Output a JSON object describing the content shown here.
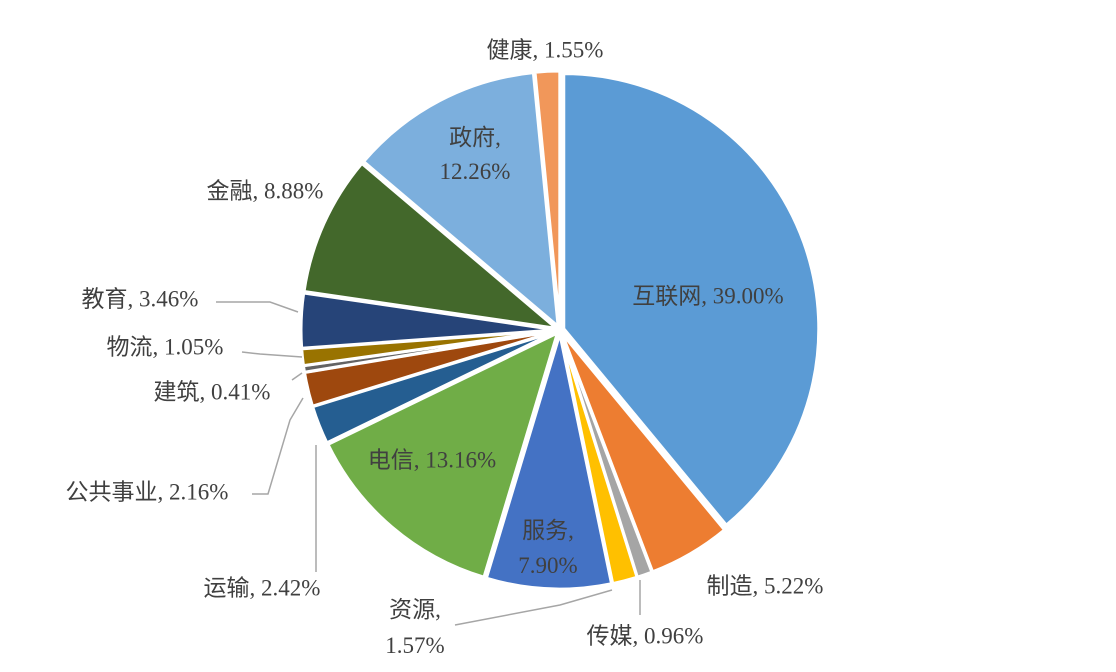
{
  "chart_data": {
    "type": "pie",
    "values": [
      39.0,
      5.22,
      0.96,
      1.57,
      7.9,
      13.16,
      2.42,
      2.16,
      0.41,
      1.05,
      3.46,
      8.88,
      12.26,
      1.55
    ],
    "value_labels": [
      "互联网, 39.00%",
      "制造, 5.22%",
      "传媒, 0.96%",
      "资源, 1.57%",
      "服务, 7.90%",
      "电信, 13.16%",
      "运输, 2.42%",
      "公共事业, 2.16%",
      "建筑, 0.41%",
      "物流, 1.05%",
      "教育, 3.46%",
      "金融, 8.88%",
      "政府, 12.26%",
      "健康, 1.55%"
    ],
    "colors": [
      "#5b9bd5",
      "#ed7d31",
      "#a5a5a5",
      "#ffc000",
      "#4472c4",
      "#70ad47",
      "#255e91",
      "#9e480e",
      "#636363",
      "#997300",
      "#264478",
      "#43682b",
      "#7cafdd",
      "#f1975a"
    ]
  }
}
